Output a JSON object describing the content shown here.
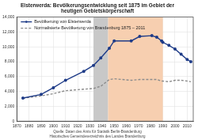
{
  "chart_data": {
    "type": "line",
    "title": [
      "Elsterwerda: Bevölkerungsentwicklung seit 1875 im Gebiet der",
      "heutigen Gebietskörperschaft"
    ],
    "subtitle": [
      "Quelle: Daten des Amts für Statistik Berlin-Brandenburg",
      "Historisches Gemeindeverzeichnis des Landes Brandenburg"
    ],
    "x": [
      1875,
      1890,
      1900,
      1910,
      1925,
      1933,
      1939,
      1946,
      1950,
      1964,
      1971,
      1981,
      1985,
      1989,
      1990,
      1995,
      2000,
      2005,
      2010,
      2013
    ],
    "series": [
      {
        "name": "Bevölkerung von Elsterwerda",
        "color": "#1f3c88",
        "marker": "circle",
        "line_style": "solid",
        "values": [
          3100,
          3600,
          4500,
          5500,
          6700,
          7500,
          8500,
          9800,
          10800,
          10800,
          11400,
          11500,
          11300,
          10800,
          10600,
          10200,
          9700,
          9000,
          8300,
          8000
        ]
      },
      {
        "name": "Normalisierte Bevölkerung von Brandenburg 1875 – 2011",
        "color": "#8c8c8c",
        "marker": "none",
        "line_style": "dashed",
        "values": [
          3100,
          3400,
          3700,
          4100,
          4300,
          4400,
          4700,
          5600,
          5700,
          5500,
          5600,
          5600,
          5600,
          5400,
          5400,
          5300,
          5500,
          5500,
          5400,
          5300
        ]
      }
    ],
    "shaded_ranges": [
      {
        "from": 1933,
        "to": 1945,
        "color": "#c8c8c8"
      },
      {
        "from": 1945,
        "to": 1990,
        "color": "#f7cfb0"
      }
    ],
    "xlim": [
      1870,
      2015
    ],
    "xticks": [
      1870,
      1880,
      1890,
      1900,
      1910,
      1920,
      1930,
      1940,
      1950,
      1960,
      1970,
      1980,
      1990,
      2000,
      2010
    ],
    "ylim": [
      0,
      14000
    ],
    "yticks": [
      0,
      {
        "value": 2000,
        "label": "2,000"
      },
      {
        "value": 4000,
        "label": "4,000"
      },
      {
        "value": 6000,
        "label": "6,000"
      },
      {
        "value": 8000,
        "label": "8,000"
      },
      {
        "value": 10000,
        "label": "10,000"
      },
      {
        "value": 12000,
        "label": "12,000"
      },
      {
        "value": 14000,
        "label": "14,000"
      }
    ],
    "grid": true,
    "legend": "top-left"
  }
}
